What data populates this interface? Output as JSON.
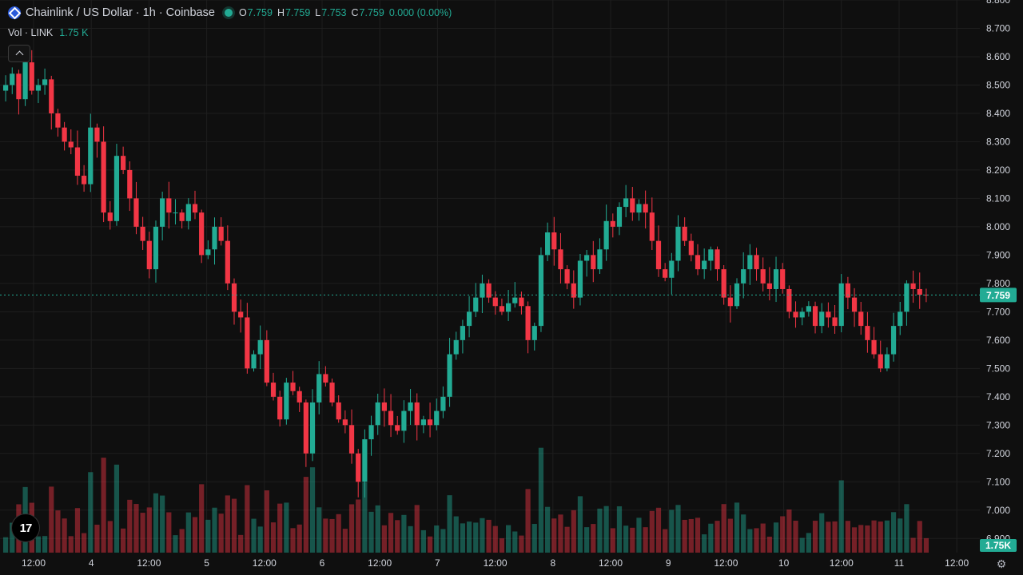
{
  "legend": {
    "title": "Chainlink / US Dollar · 1h · Coinbase",
    "open_key": "O",
    "open": "7.759",
    "high_key": "H",
    "high": "7.759",
    "low_key": "L",
    "low": "7.753",
    "close_key": "C",
    "close": "7.759",
    "change": "0.000 (0.00%)",
    "vol_label": "Vol · LINK",
    "vol_value": "1.75 K"
  },
  "icons": {
    "symbol": "chainlink-logo-icon",
    "status": "market-status-dot-icon",
    "collapse": "chevron-up-icon",
    "logo": "tradingview-logo-icon",
    "settings": "gear-icon"
  },
  "tv_logo_text": "17",
  "colors": {
    "up": "#22ab94",
    "down": "#f23645",
    "background": "#0f0f0f",
    "grid": "#1e1e1e"
  },
  "chart_data": {
    "type": "candlestick",
    "price_range": [
      6.85,
      8.8
    ],
    "price_ticks": [
      "8.800",
      "8.700",
      "8.600",
      "8.500",
      "8.400",
      "8.300",
      "8.200",
      "8.100",
      "8.000",
      "7.900",
      "7.800",
      "7.700",
      "7.600",
      "7.500",
      "7.400",
      "7.300",
      "7.200",
      "7.100",
      "7.000",
      "6.900"
    ],
    "time_labels": [
      "12:00",
      "4",
      "12:00",
      "5",
      "12:00",
      "6",
      "12:00",
      "7",
      "12:00",
      "8",
      "12:00",
      "9",
      "12:00",
      "10",
      "12:00",
      "11",
      "12:00"
    ],
    "last_price": "7.759",
    "last_volume": "1.75K",
    "grid": true,
    "close": [
      8.5,
      8.54,
      8.45,
      8.58,
      8.48,
      8.5,
      8.52,
      8.4,
      8.35,
      8.3,
      8.28,
      8.18,
      8.15,
      8.35,
      8.3,
      8.05,
      8.02,
      8.25,
      8.2,
      8.1,
      8.0,
      7.95,
      7.85,
      8.0,
      8.1,
      8.05,
      8.05,
      8.02,
      8.08,
      8.05,
      7.9,
      7.92,
      8.0,
      7.95,
      7.8,
      7.7,
      7.68,
      7.5,
      7.55,
      7.6,
      7.45,
      7.4,
      7.32,
      7.45,
      7.42,
      7.38,
      7.2,
      7.38,
      7.48,
      7.45,
      7.38,
      7.32,
      7.3,
      7.2,
      7.1,
      7.25,
      7.3,
      7.38,
      7.35,
      7.3,
      7.28,
      7.35,
      7.38,
      7.3,
      7.32,
      7.3,
      7.35,
      7.4,
      7.55,
      7.6,
      7.65,
      7.7,
      7.75,
      7.8,
      7.75,
      7.72,
      7.7,
      7.73,
      7.75,
      7.72,
      7.6,
      7.65,
      7.9,
      7.98,
      7.92,
      7.85,
      7.8,
      7.75,
      7.88,
      7.9,
      7.85,
      7.92,
      8.02,
      8.0,
      8.07,
      8.1,
      8.05,
      8.08,
      8.05,
      7.95,
      7.85,
      7.82,
      7.88,
      8.0,
      7.95,
      7.9,
      7.85,
      7.88,
      7.92,
      7.85,
      7.75,
      7.72,
      7.8,
      7.85,
      7.9,
      7.85,
      7.8,
      7.78,
      7.85,
      7.78,
      7.7,
      7.68,
      7.7,
      7.72,
      7.65,
      7.7,
      7.68,
      7.65,
      7.8,
      7.75,
      7.7,
      7.65,
      7.6,
      7.55,
      7.5,
      7.55,
      7.65,
      7.7,
      7.8,
      7.78,
      7.76,
      7.759
    ]
  }
}
